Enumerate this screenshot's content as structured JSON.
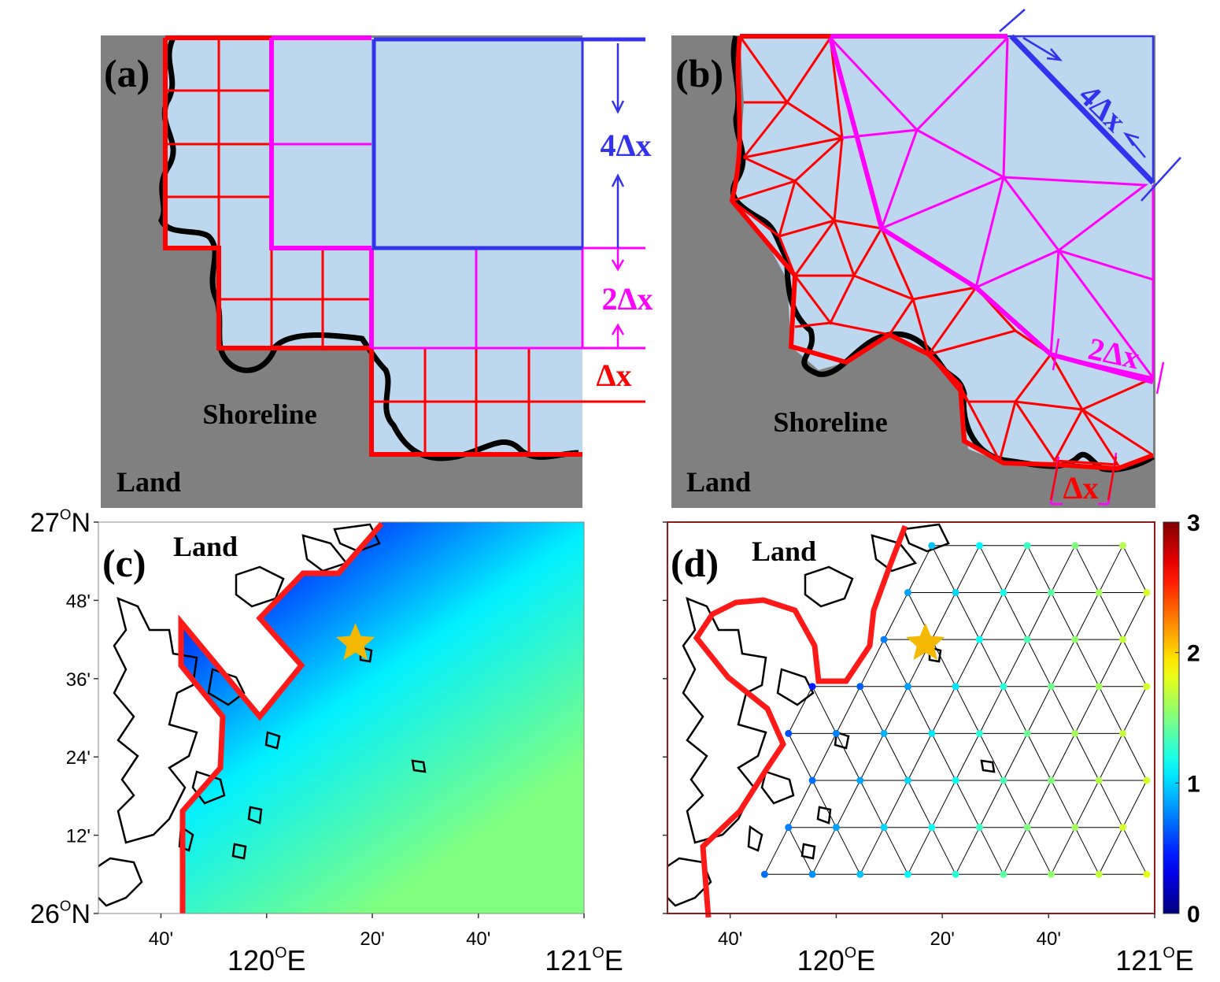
{
  "panels": {
    "a": {
      "label": "(a)",
      "land": "Land",
      "shoreline": "Shoreline",
      "dx4": "4Δx",
      "dx2": "2Δx",
      "dx1": "Δx"
    },
    "b": {
      "label": "(b)",
      "land": "Land",
      "shoreline": "Shoreline",
      "dx4": "4Δx",
      "dx2": "2Δx",
      "dx1": "Δx"
    },
    "c": {
      "label": "(c)",
      "land": "Land"
    },
    "d": {
      "label": "(d)",
      "land": "Land"
    }
  },
  "map_axes": {
    "lon_lim": [
      119.47,
      121
    ],
    "lat_lim": [
      26,
      27
    ],
    "lon_ticks": [
      {
        "value": 119.667,
        "label": "40'"
      },
      {
        "value": 120,
        "label": {
          "deg": "120",
          "sup": "O",
          "hem": "E"
        }
      },
      {
        "value": 120.333,
        "label": "20'"
      },
      {
        "value": 120.667,
        "label": "40'"
      },
      {
        "value": 121,
        "label": {
          "deg": "121",
          "sup": "O",
          "hem": "E"
        }
      }
    ],
    "lat_ticks": [
      {
        "value": 26,
        "label": {
          "deg": "26",
          "sup": "O",
          "hem": "N"
        }
      },
      {
        "value": 26.2,
        "label": "12'"
      },
      {
        "value": 26.4,
        "label": "24'"
      },
      {
        "value": 26.6,
        "label": "36'"
      },
      {
        "value": 26.8,
        "label": "48'"
      },
      {
        "value": 27,
        "label": {
          "deg": "27",
          "sup": "O",
          "hem": "N"
        }
      }
    ]
  },
  "station": {
    "lon": 120.28,
    "lat": 26.69
  },
  "colorbar": {
    "lim": [
      0,
      3
    ],
    "ticks": [
      0,
      1,
      2,
      3
    ]
  },
  "points": {
    "lon": [
      120.3,
      120.45,
      120.6,
      120.75,
      120.9,
      120.225,
      120.375,
      120.525,
      120.675,
      120.825,
      120.975,
      120.15,
      120.3,
      120.45,
      120.6,
      120.75,
      120.9,
      119.925,
      120.075,
      120.225,
      120.375,
      120.525,
      120.675,
      120.825,
      120.975,
      119.85,
      120.0,
      120.15,
      120.3,
      120.45,
      120.6,
      120.75,
      120.9,
      119.925,
      120.075,
      120.225,
      120.375,
      120.525,
      120.675,
      120.825,
      120.975,
      119.85,
      120.0,
      120.15,
      120.3,
      120.45,
      120.6,
      120.75,
      120.9,
      119.775,
      119.925,
      120.075,
      120.225,
      120.375,
      120.525,
      120.675,
      120.825,
      120.975
    ],
    "lat": [
      26.94,
      26.94,
      26.94,
      26.94,
      26.94,
      26.82,
      26.82,
      26.82,
      26.82,
      26.82,
      26.82,
      26.7,
      26.7,
      26.7,
      26.7,
      26.7,
      26.7,
      26.58,
      26.58,
      26.58,
      26.58,
      26.58,
      26.58,
      26.58,
      26.58,
      26.46,
      26.46,
      26.46,
      26.46,
      26.46,
      26.46,
      26.46,
      26.46,
      26.34,
      26.34,
      26.34,
      26.34,
      26.34,
      26.34,
      26.34,
      26.34,
      26.22,
      26.22,
      26.22,
      26.22,
      26.22,
      26.22,
      26.22,
      26.22,
      26.1,
      26.1,
      26.1,
      26.1,
      26.1,
      26.1,
      26.1,
      26.1,
      26.1
    ],
    "value": [
      0.95,
      1.1,
      1.3,
      1.5,
      1.65,
      0.85,
      1.0,
      1.2,
      1.4,
      1.6,
      1.75,
      0.75,
      0.95,
      1.15,
      1.35,
      1.55,
      1.7,
      0.45,
      0.65,
      0.85,
      1.05,
      1.25,
      1.45,
      1.6,
      1.75,
      0.6,
      0.75,
      0.9,
      1.05,
      1.25,
      1.45,
      1.6,
      1.7,
      0.7,
      0.85,
      1.0,
      1.15,
      1.35,
      1.5,
      1.65,
      1.75,
      0.75,
      0.85,
      1.0,
      1.15,
      1.3,
      1.5,
      1.6,
      1.75,
      0.7,
      0.8,
      0.95,
      1.1,
      1.25,
      1.4,
      1.55,
      1.7,
      1.8
    ]
  }
}
